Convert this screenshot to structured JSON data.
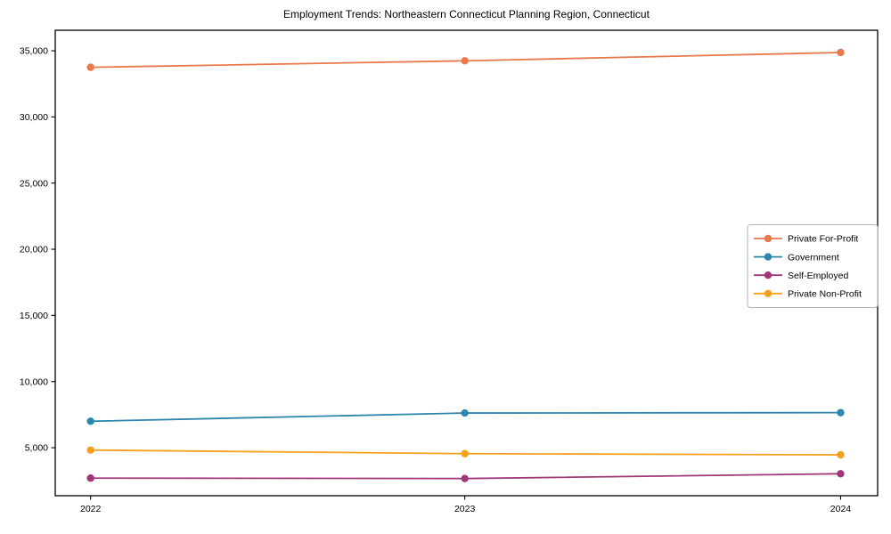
{
  "title": "Employment Trends: Northeastern Connecticut Planning Region, Connecticut",
  "chart_data": {
    "type": "line",
    "title": "Employment Trends: Northeastern Connecticut Planning Region, Connecticut",
    "xlabel": "",
    "ylabel": "",
    "grid": false,
    "legend_position": "center-right-inside",
    "x": [
      2022,
      2023,
      2024
    ],
    "xtick_labels": [
      "2022",
      "2023",
      "2024"
    ],
    "yticks": [
      5000,
      10000,
      15000,
      20000,
      25000,
      30000,
      35000
    ],
    "ytick_labels": [
      "5,000",
      "10,000",
      "15,000",
      "20,000",
      "25,000",
      "30,000",
      "35,000"
    ],
    "ylim": [
      1370,
      36550
    ],
    "series": [
      {
        "name": "Private For-Profit",
        "color": "#E8794B",
        "marker": "circle",
        "values": [
          33750,
          34240,
          34870
        ]
      },
      {
        "name": "Government",
        "color": "#2E86AB",
        "marker": "circle",
        "values": [
          7000,
          7620,
          7650
        ]
      },
      {
        "name": "Self-Employed",
        "color": "#A03778",
        "marker": "circle",
        "values": [
          2700,
          2670,
          3030
        ]
      },
      {
        "name": "Private Non-Profit",
        "color": "#F5A01E",
        "marker": "circle",
        "values": [
          4820,
          4550,
          4460
        ]
      }
    ],
    "axis_color": "#000000",
    "tick_label_color": "#000000",
    "legend_border_color": "#b5b5b5",
    "background_color": "#ffffff"
  }
}
